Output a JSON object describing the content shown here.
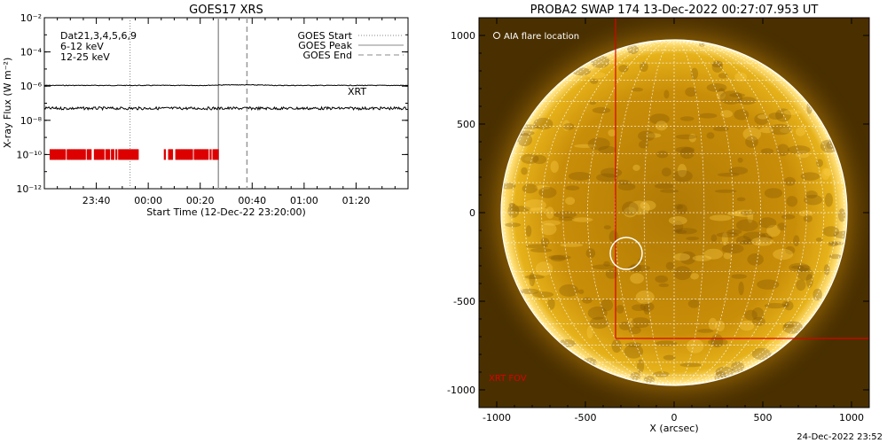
{
  "goes_panel": {
    "title": "GOES17 XRS",
    "ylabel": "X-ray Flux (W m⁻²)",
    "xlabel": "Start Time (12-Dec-22 23:20:00)",
    "header_line": "Dat21,3,4,5,6,9",
    "band_low": "6-12 keV",
    "band_high": "12-25 keV",
    "band_low_color": "#cc00cc",
    "band_high_color": "#00cc00",
    "legend": [
      {
        "label": "GOES Start",
        "style": "dotted"
      },
      {
        "label": "GOES Peak",
        "style": "solid"
      },
      {
        "label": "GOES End",
        "style": "dashed"
      }
    ],
    "xrt_label": "XRT",
    "xrt_color": "#dd0000"
  },
  "swap_panel": {
    "title": "PROBA2 SWAP 174 13-Dec-2022 00:27:07.953 UT",
    "xlabel": "X (arcsec)",
    "aia_label": "AIA flare location",
    "fov_label": "XRT FOV",
    "fov_color": "#dd0000"
  },
  "footer": {
    "timestamp": "24-Dec-2022 23:52"
  },
  "chart_data": [
    {
      "type": "line",
      "title": "GOES17 XRS",
      "xlabel": "Start Time (12-Dec-22 23:20:00)",
      "ylabel": "X-ray Flux (W m⁻²)",
      "yscale": "log",
      "ylim": [
        1e-12,
        0.01
      ],
      "xlim_minutes_after_start": [
        0,
        140
      ],
      "x_tick_labels": [
        "23:40",
        "00:00",
        "00:20",
        "00:40",
        "01:00",
        "01:20"
      ],
      "x_tick_minutes_after_start": [
        20,
        40,
        60,
        80,
        100,
        120
      ],
      "y_tick_labels": [
        "10⁻¹²",
        "10⁻¹⁰",
        "10⁻⁸",
        "10⁻⁶",
        "10⁻⁴",
        "10⁻²"
      ],
      "y_tick_values": [
        1e-12,
        1e-10,
        1e-08,
        1e-06,
        0.0001,
        0.01
      ],
      "series": [
        {
          "name": "6-12 keV",
          "color": "#000000",
          "approx_level": 1.1e-06
        },
        {
          "name": "12-25 keV",
          "color": "#000000",
          "approx_level": 5e-08
        }
      ],
      "markers": {
        "goes_start_minutes": 33,
        "goes_peak_minutes": 67,
        "goes_end_minutes": 78
      },
      "xrt_intervals_minutes": [
        [
          2,
          36
        ],
        [
          46,
          67
        ]
      ],
      "xrt_level": 1e-10,
      "grid": false,
      "legend": "top-right"
    },
    {
      "type": "image",
      "title": "PROBA2 SWAP 174 13-Dec-2022 00:27:07.953 UT",
      "xlabel": "X (arcsec)",
      "xlim": [
        -1100,
        1100
      ],
      "ylim": [
        -1100,
        1100
      ],
      "x_tick_values": [
        -1000,
        -500,
        0,
        500,
        1000
      ],
      "x_tick_labels": [
        "-1000",
        "-500",
        "0",
        "500",
        "1000"
      ],
      "y_tick_values": [
        -1000,
        -500,
        0,
        500,
        1000
      ],
      "y_tick_labels": [
        "-1000",
        "-500",
        "0",
        "500",
        "1000"
      ],
      "solar_radius_arcsec": 975,
      "aia_flare_location": {
        "x": -270,
        "y": -230,
        "radius": 90
      },
      "xrt_fov": {
        "x_min": -330,
        "x_max": 1100,
        "y_min": -710,
        "y_max": 1100
      }
    }
  ]
}
